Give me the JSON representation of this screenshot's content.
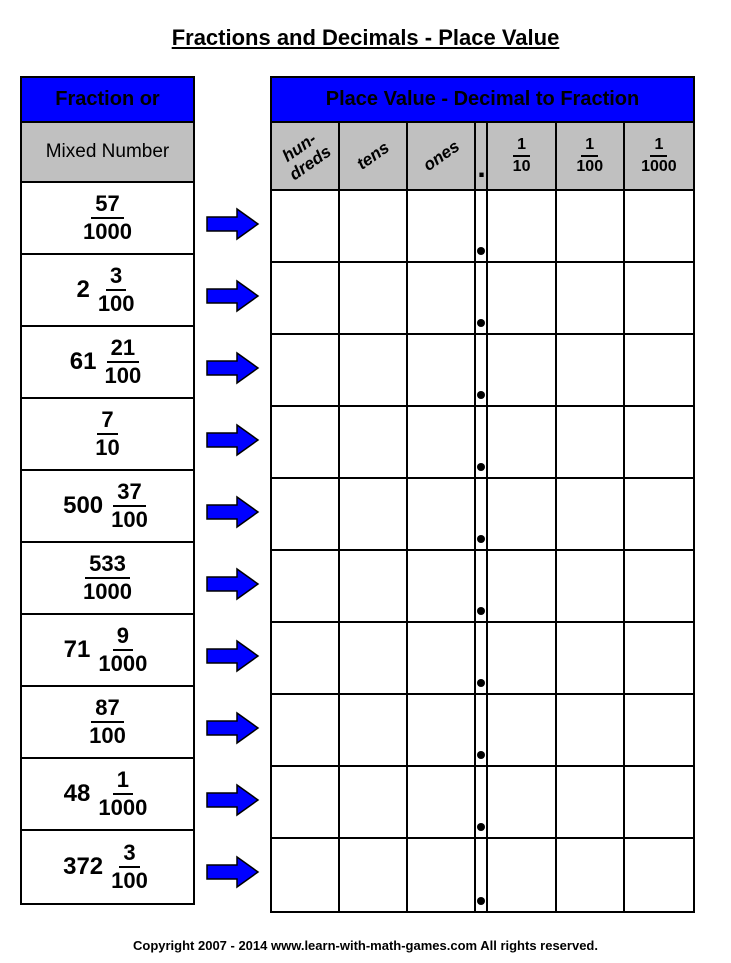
{
  "title": "Fractions and Decimals - Place Value",
  "left": {
    "header1": "Fraction or",
    "header2": "Mixed Number",
    "rows": [
      {
        "whole": "",
        "num": "57",
        "den": "1000"
      },
      {
        "whole": "2",
        "num": "3",
        "den": "100"
      },
      {
        "whole": "61",
        "num": "21",
        "den": "100"
      },
      {
        "whole": "",
        "num": "7",
        "den": "10"
      },
      {
        "whole": "500",
        "num": "37",
        "den": "100"
      },
      {
        "whole": "",
        "num": "533",
        "den": "1000"
      },
      {
        "whole": "71",
        "num": "9",
        "den": "1000"
      },
      {
        "whole": "",
        "num": "87",
        "den": "100"
      },
      {
        "whole": "48",
        "num": "1",
        "den": "1000"
      },
      {
        "whole": "372",
        "num": "3",
        "den": "100"
      }
    ]
  },
  "right": {
    "header1": "Place Value - Decimal to Fraction",
    "columns": {
      "c1": "hun-\ndreds",
      "c2": "tens",
      "c3": "ones",
      "f1num": "1",
      "f1den": "10",
      "f2num": "1",
      "f2den": "100",
      "f3num": "1",
      "f3den": "1000"
    },
    "row_count": 10
  },
  "arrow": {
    "fill": "#0000ff",
    "stroke": "#000000"
  },
  "colors": {
    "header_bg": "#0000ff",
    "subheader_bg": "#c0c0c0"
  },
  "copyright": "Copyright   2007 - 2014   www.learn-with-math-games.com   All rights reserved."
}
